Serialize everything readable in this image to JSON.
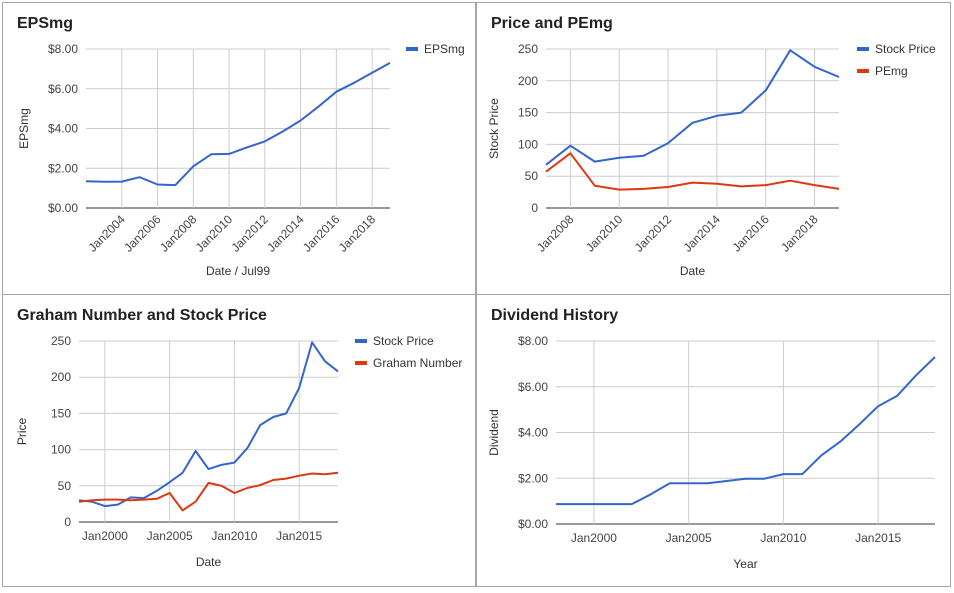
{
  "chart_data": [
    {
      "id": "c1",
      "type": "line",
      "title": "EPSmg",
      "xlabel": "Date / Jul99",
      "ylabel": "EPSmg",
      "tick_format": "currency",
      "x_tick_rotated": true,
      "xlim": [
        2002,
        2019
      ],
      "ylim": [
        0,
        8
      ],
      "yticks": [
        0,
        2,
        4,
        6,
        8
      ],
      "xticks": [
        2004,
        2006,
        2008,
        2010,
        2012,
        2014,
        2016,
        2018
      ],
      "grid": true,
      "legend": "right",
      "series": [
        {
          "name": "EPSmg",
          "color": "#3366cc",
          "x": [
            2002,
            2003,
            2004,
            2005,
            2006,
            2007,
            2008,
            2009,
            2010,
            2011,
            2012,
            2013,
            2014,
            2015,
            2016,
            2017,
            2018,
            2019
          ],
          "y": [
            1.35,
            1.32,
            1.33,
            1.55,
            1.18,
            1.15,
            2.1,
            2.7,
            2.72,
            3.05,
            3.35,
            3.85,
            4.4,
            5.1,
            5.85,
            6.3,
            6.8,
            7.3
          ]
        }
      ]
    },
    {
      "id": "c2",
      "type": "line",
      "title": "Price and PEmg",
      "xlabel": "Date",
      "ylabel": "Stock Price",
      "tick_format": "number",
      "x_tick_rotated": true,
      "xlim": [
        2007,
        2019
      ],
      "ylim": [
        0,
        250
      ],
      "yticks": [
        0,
        50,
        100,
        150,
        200,
        250
      ],
      "xticks": [
        2008,
        2010,
        2012,
        2014,
        2016,
        2018
      ],
      "grid": true,
      "legend": "right",
      "series": [
        {
          "name": "Stock Price",
          "color": "#3366cc",
          "x": [
            2007,
            2008,
            2009,
            2010,
            2011,
            2012,
            2013,
            2014,
            2015,
            2016,
            2017,
            2018,
            2019
          ],
          "y": [
            68,
            98,
            73,
            79,
            82,
            102,
            134,
            145,
            150,
            185,
            248,
            222,
            206
          ]
        },
        {
          "name": "PEmg",
          "color": "#dc3912",
          "x": [
            2007,
            2008,
            2009,
            2010,
            2011,
            2012,
            2013,
            2014,
            2015,
            2016,
            2017,
            2018,
            2019
          ],
          "y": [
            57,
            86,
            35,
            29,
            30,
            33,
            40,
            38,
            34,
            36,
            43,
            36,
            30
          ]
        }
      ]
    },
    {
      "id": "c3",
      "type": "line",
      "title": "Graham Number and Stock Price",
      "xlabel": "Date",
      "ylabel": "Price",
      "tick_format": "number",
      "x_tick_rotated": false,
      "xlim": [
        1998,
        2018
      ],
      "ylim": [
        0,
        250
      ],
      "yticks": [
        0,
        50,
        100,
        150,
        200,
        250
      ],
      "xticks": [
        2000,
        2005,
        2010,
        2015
      ],
      "xtick_labels": [
        "Jan2000",
        "Jan2005",
        "Jan2010",
        "Jan2015"
      ],
      "grid": true,
      "legend": "right",
      "series": [
        {
          "name": "Stock Price",
          "color": "#3366cc",
          "x": [
            1998,
            1999,
            2000,
            2001,
            2002,
            2003,
            2004,
            2005,
            2006,
            2007,
            2008,
            2009,
            2010,
            2011,
            2012,
            2013,
            2014,
            2015,
            2016,
            2017,
            2018
          ],
          "y": [
            30,
            28,
            22,
            24,
            34,
            33,
            43,
            55,
            68,
            98,
            73,
            79,
            82,
            102,
            134,
            145,
            150,
            185,
            248,
            222,
            208
          ]
        },
        {
          "name": "Graham Number",
          "color": "#dc3912",
          "x": [
            1998,
            1999,
            2000,
            2001,
            2002,
            2003,
            2004,
            2005,
            2006,
            2007,
            2008,
            2009,
            2010,
            2011,
            2012,
            2013,
            2014,
            2015,
            2016,
            2017,
            2018
          ],
          "y": [
            28,
            30,
            31,
            31,
            30,
            31,
            32,
            40,
            16,
            28,
            54,
            50,
            40,
            47,
            51,
            58,
            60,
            64,
            67,
            66,
            68
          ]
        }
      ]
    },
    {
      "id": "c4",
      "type": "line",
      "title": "Dividend History",
      "xlabel": "Year",
      "ylabel": "Dividend",
      "tick_format": "currency",
      "x_tick_rotated": false,
      "xlim": [
        1998,
        2018
      ],
      "ylim": [
        0,
        8
      ],
      "yticks": [
        0,
        2,
        4,
        6,
        8
      ],
      "xticks": [
        2000,
        2005,
        2010,
        2015
      ],
      "xtick_labels": [
        "Jan2000",
        "Jan2005",
        "Jan2010",
        "Jan2015"
      ],
      "grid": true,
      "legend": "none",
      "series": [
        {
          "name": "",
          "color": "#3366cc",
          "x": [
            1998,
            1999,
            2000,
            2001,
            2002,
            2003,
            2004,
            2005,
            2006,
            2007,
            2008,
            2009,
            2010,
            2011,
            2012,
            2013,
            2014,
            2015,
            2016,
            2017,
            2018
          ],
          "y": [
            0.87,
            0.87,
            0.87,
            0.87,
            0.87,
            1.3,
            1.78,
            1.78,
            1.78,
            1.88,
            1.98,
            1.98,
            2.18,
            2.18,
            3.0,
            3.6,
            4.35,
            5.15,
            5.6,
            6.5,
            7.3
          ]
        }
      ]
    }
  ]
}
